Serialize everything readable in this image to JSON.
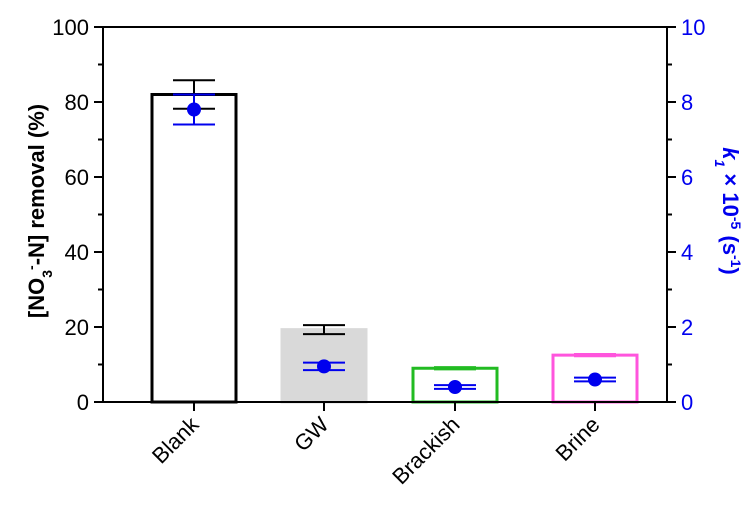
{
  "chart_data": {
    "type": "bar",
    "categories": [
      "Blank",
      "GW",
      "Brackish",
      "Brine"
    ],
    "ylim": [
      0,
      100
    ],
    "y2lim": [
      0,
      10
    ],
    "yticks": [
      "0",
      "20",
      "40",
      "60",
      "80",
      "100"
    ],
    "y2ticks": [
      "0",
      "2",
      "4",
      "6",
      "8",
      "10"
    ],
    "ylabel": {
      "part1": "[NO",
      "sub": "3",
      "sup": "-",
      "part2": "-N] removal (%)"
    },
    "y2label": {
      "k": "k",
      "sub": "1",
      "mid": " × 10",
      "sup": "-5",
      "unit": " (s",
      "unit_sup": "-1",
      "close": ")"
    },
    "series": [
      {
        "kind": "bar",
        "values": [
          82,
          19.3,
          9,
          12.5
        ],
        "errors": [
          3.8,
          1.2,
          0.3,
          0.3
        ],
        "edge_colors": [
          "#000000",
          "#d9d9d9",
          "#22bb22",
          "#ff55dd"
        ],
        "fill_colors": [
          "#ffffff",
          "#d9d9d9",
          "#ffffff",
          "#ffffff"
        ],
        "error_colors": [
          "#000000",
          "#000000",
          "#22bb22",
          "#ff55dd"
        ]
      },
      {
        "kind": "point",
        "axis": "right",
        "values": [
          7.8,
          0.95,
          0.4,
          0.6
        ],
        "errors": [
          0.4,
          0.1,
          0.05,
          0.05
        ],
        "color": "#0000ee"
      }
    ]
  },
  "colors": {
    "axis": "#000000",
    "right_axis": "#0000ee"
  }
}
